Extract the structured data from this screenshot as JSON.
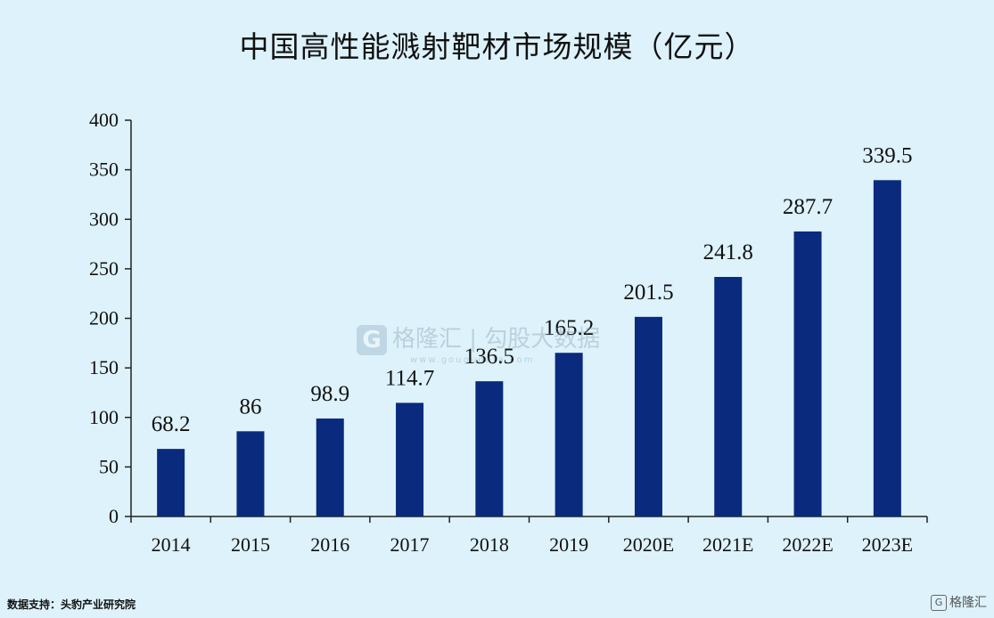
{
  "chart_data": {
    "type": "bar",
    "title": "中国高性能溅射靶材市场规模（亿元）",
    "categories": [
      "2014",
      "2015",
      "2016",
      "2017",
      "2018",
      "2019",
      "2020E",
      "2021E",
      "2022E",
      "2023E"
    ],
    "values": [
      68.2,
      86,
      98.9,
      114.7,
      136.5,
      165.2,
      201.5,
      241.8,
      287.7,
      339.5
    ],
    "value_labels": [
      "68.2",
      "86",
      "98.9",
      "114.7",
      "136.5",
      "165.2",
      "201.5",
      "241.8",
      "287.7",
      "339.5"
    ],
    "y_ticks": [
      0,
      50,
      100,
      150,
      200,
      250,
      300,
      350,
      400
    ],
    "ylim": [
      0,
      400
    ],
    "xlabel": "",
    "ylabel": "",
    "grid": false,
    "bar_color": "#0a2a7e"
  },
  "source": "数据支持：头豹产业研究院",
  "watermark": {
    "logo_letter": "G",
    "text": "格隆汇 | 勾股大数据",
    "url": "www.gougudata.com"
  },
  "corner_logo": {
    "letter": "G",
    "text": "格隆汇"
  }
}
